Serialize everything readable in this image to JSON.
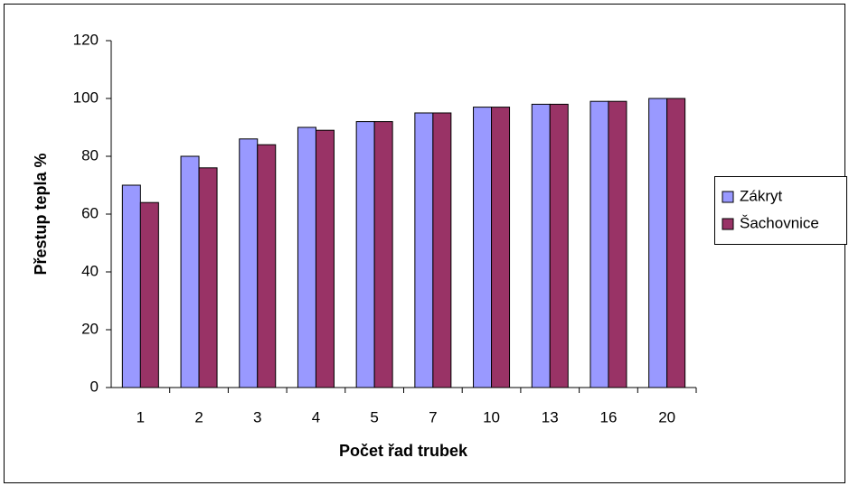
{
  "chart_data": {
    "type": "bar",
    "x_label": "Počet řad trubek",
    "y_label": "Přestup tepla %",
    "categories": [
      "1",
      "2",
      "3",
      "4",
      "5",
      "7",
      "10",
      "13",
      "16",
      "20"
    ],
    "series": [
      {
        "name": "Zákryt",
        "color": "#9999ff",
        "values": [
          70,
          80,
          86,
          90,
          92,
          95,
          97,
          98,
          99,
          100
        ]
      },
      {
        "name": "Šachovnice",
        "color": "#993366",
        "values": [
          64,
          76,
          84,
          89,
          92,
          95,
          97,
          98,
          99,
          100
        ]
      }
    ],
    "ylim": [
      0,
      120
    ],
    "yticks": [
      0,
      20,
      40,
      60,
      80,
      100,
      120
    ],
    "grid": false,
    "legend": "right"
  }
}
